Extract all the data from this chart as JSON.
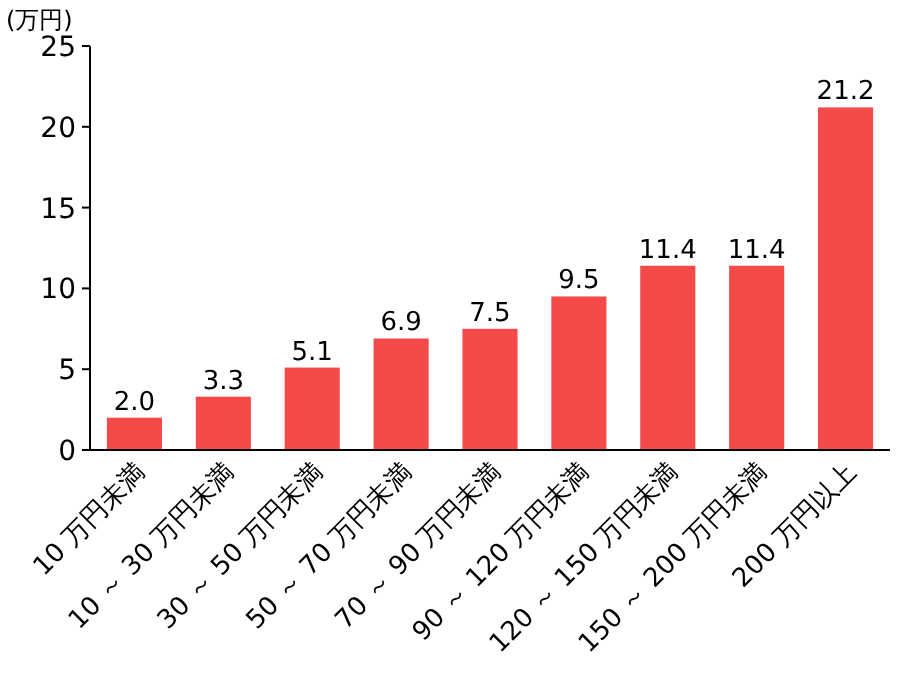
{
  "chart_data": {
    "type": "bar",
    "ylabel": "(万円)",
    "categories": [
      "10 万円未満",
      "10 ～ 30 万円未満",
      "30 ～ 50 万円未満",
      "50 ～ 70 万円未満",
      "70 ～ 90 万円未満",
      "90 ～ 120 万円未満",
      "120 ～ 150 万円未満",
      "150 ～ 200 万円未満",
      "200 万円以上"
    ],
    "values": [
      2.0,
      3.3,
      5.1,
      6.9,
      7.5,
      9.5,
      11.4,
      11.4,
      21.2
    ],
    "value_labels": [
      "2.0",
      "3.3",
      "5.1",
      "6.9",
      "7.5",
      "9.5",
      "11.4",
      "11.4",
      "21.2"
    ],
    "color": "#f44a4a",
    "ylim": [
      0,
      25
    ],
    "yticks": [
      0,
      5,
      10,
      15,
      20,
      25
    ]
  }
}
